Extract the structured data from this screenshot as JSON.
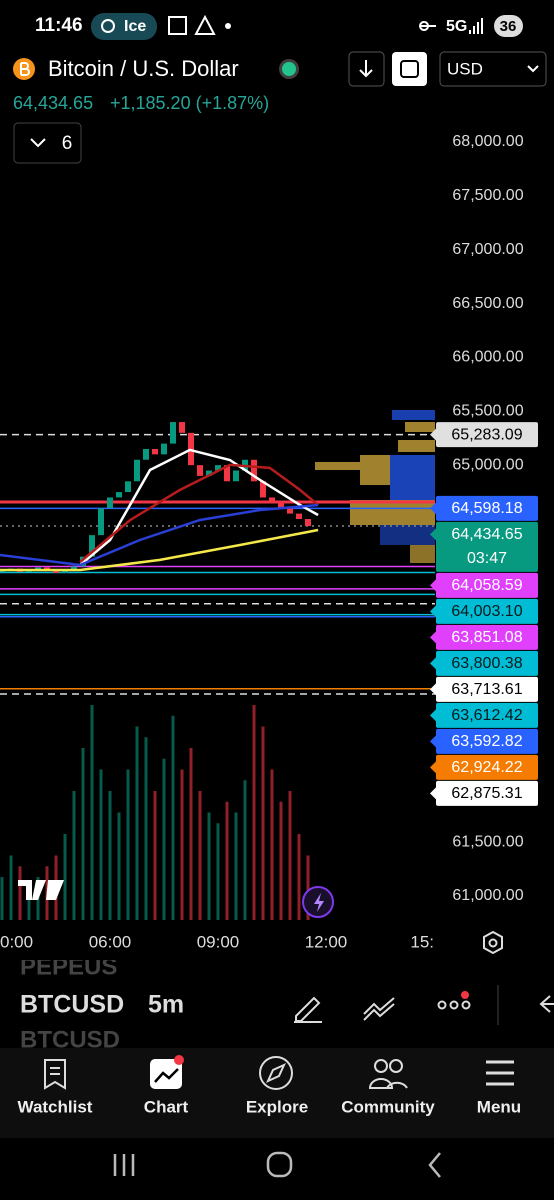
{
  "status_bar": {
    "time": "11:46",
    "badge": "Ice",
    "network": "5G",
    "battery": "36"
  },
  "header": {
    "symbol_name": "Bitcoin / U.S. Dollar",
    "price": "64,434.65",
    "change": "+1,185.20 (+1.87%)",
    "indicators": "6",
    "currency": "USD"
  },
  "chart_data": {
    "type": "candlestick",
    "xlim": [
      3,
      15
    ],
    "xticks": [
      {
        "value": 3,
        "label": "0:00"
      },
      {
        "value": 6,
        "label": "06:00"
      },
      {
        "value": 9,
        "label": "09:00"
      },
      {
        "value": 12,
        "label": "12:00"
      },
      {
        "value": 15,
        "label": "15:"
      }
    ],
    "ylim": [
      60731,
      68204
    ],
    "yticks": [
      {
        "value": 68000,
        "label": "68,000.00"
      },
      {
        "value": 67500,
        "label": "67,500.00"
      },
      {
        "value": 67000,
        "label": "67,000.00"
      },
      {
        "value": 66500,
        "label": "66,500.00"
      },
      {
        "value": 66000,
        "label": "66,000.00"
      },
      {
        "value": 65500,
        "label": "65,500.00"
      },
      {
        "value": 65000,
        "label": "65,000.00"
      },
      {
        "value": 61500,
        "label": "61,500.00"
      },
      {
        "value": 61000,
        "label": "61,000.00"
      }
    ],
    "x": [
      3,
      3.25,
      3.5,
      3.75,
      4,
      4.25,
      4.5,
      4.75,
      5,
      5.25,
      5.5,
      5.75,
      6,
      6.25,
      6.5,
      6.75,
      7,
      7.25,
      7.5,
      7.75,
      8,
      8.25,
      8.5,
      8.75,
      9,
      9.25,
      9.5,
      9.75,
      10,
      10.25,
      10.5,
      10.75,
      11,
      11.25,
      11.5
    ],
    "close": [
      64020,
      64040,
      64010,
      64030,
      64050,
      64020,
      64000,
      64030,
      64060,
      64150,
      64350,
      64600,
      64700,
      64750,
      64850,
      65050,
      65150,
      65100,
      65200,
      65400,
      65300,
      65000,
      64900,
      64950,
      65000,
      64850,
      64950,
      65050,
      64850,
      64700,
      64650,
      64600,
      64550,
      64500,
      64434.65
    ],
    "volume": [
      20,
      30,
      25,
      15,
      20,
      25,
      30,
      40,
      60,
      80,
      100,
      70,
      60,
      50,
      70,
      90,
      85,
      60,
      75,
      95,
      70,
      80,
      60,
      50,
      45,
      55,
      50,
      65,
      100,
      90,
      70,
      55,
      60,
      40,
      30
    ],
    "up_color": "#089981",
    "down_color": "#f23645",
    "moving_averages": [
      {
        "color": "#ffffff",
        "x": [
          5.17,
          6,
          7.11,
          8.22,
          9.33,
          10.17,
          11.28,
          11.78
        ],
        "values": [
          64073,
          64305,
          64955,
          65141,
          65048,
          64862,
          64630,
          64537
        ]
      },
      {
        "color": "#b71c1c",
        "x": [
          5.17,
          6.56,
          7.94,
          9.33,
          10.44,
          11.28,
          11.78
        ],
        "values": [
          64101,
          64491,
          64769,
          65002,
          64974,
          64769,
          64630
        ]
      },
      {
        "color": "#2a3fd6",
        "x": [
          2.94,
          5.17,
          6.83,
          8.5,
          10.17,
          11.78
        ],
        "values": [
          64166,
          64073,
          64305,
          64491,
          64584,
          64630
        ]
      },
      {
        "color": "#f5e94a",
        "x": [
          2.94,
          5.17,
          7.39,
          9.61,
          11.78
        ],
        "values": [
          64027,
          64027,
          64120,
          64259,
          64398
        ]
      }
    ],
    "price_tags": [
      {
        "value": 65283.09,
        "label": "65,283.09",
        "background": "#e0e0e0",
        "text_color": "#000000",
        "line": "dashed"
      },
      {
        "value": 64598.18,
        "label": "64,598.18",
        "background": "#2962ff",
        "text_color": "#ffffff",
        "line": "solid"
      },
      {
        "value": 64434.65,
        "label": "64,434.65",
        "sublabel": "03:47",
        "background": "#089981",
        "text_color": "#ffffff",
        "line": "dotted"
      },
      {
        "value": 64058.59,
        "label": "64,058.59",
        "background": "#e040fb",
        "text_color": "#ffffff",
        "line": "solid"
      },
      {
        "value": 64003.1,
        "label": "64,003.10",
        "background": "#00bcd4",
        "text_color": "#0a1a1f",
        "line": "solid"
      },
      {
        "value": 63851.08,
        "label": "63,851.08",
        "background": "#e040fb",
        "text_color": "#ffffff",
        "line": "solid"
      },
      {
        "value": 63800.38,
        "label": "63,800.38",
        "background": "#00bcd4",
        "text_color": "#0a1a1f",
        "line": "solid"
      },
      {
        "value": 63713.61,
        "label": "63,713.61",
        "background": "#ffffff",
        "text_color": "#000000",
        "line": "dashed"
      },
      {
        "value": 63612.42,
        "label": "63,612.42",
        "background": "#00bcd4",
        "text_color": "#0a1a1f",
        "line": "solid"
      },
      {
        "value": 63592.82,
        "label": "63,592.82",
        "background": "#2962ff",
        "text_color": "#ffffff",
        "line": "solid"
      },
      {
        "value": 62924.22,
        "label": "62,924.22",
        "background": "#f57c00",
        "text_color": "#ffffff",
        "line": "solid"
      },
      {
        "value": 62875.31,
        "label": "62,875.31",
        "background": "#ffffff",
        "text_color": "#000000",
        "line": "dashed"
      }
    ]
  },
  "toolbar": {
    "scroll_above": "PEPEUS",
    "symbol": "BTCUSD",
    "interval": "5m",
    "scroll_below": "BTCUSD"
  },
  "nav": [
    "Watchlist",
    "Chart",
    "Explore",
    "Community",
    "Menu"
  ]
}
